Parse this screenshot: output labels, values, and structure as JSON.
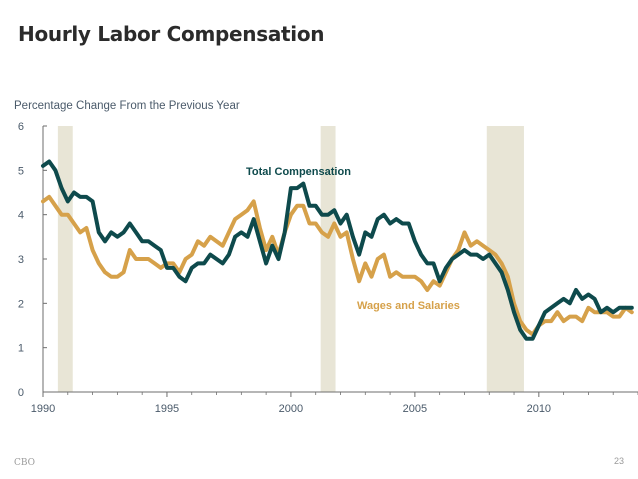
{
  "slide": {
    "title": "Hourly Labor Compensation",
    "footer_source": "CBO",
    "page_number": "23"
  },
  "colors": {
    "total": "#0e4a4c",
    "wages": "#d6a14a",
    "recession": "#e8e5d6",
    "axis": "#6e6e6e",
    "text": "#4a5a6a"
  },
  "chart_data": {
    "type": "line",
    "ylabel": "Percentage Change From the Previous Year",
    "xlim": [
      1990,
      2014
    ],
    "ylim": [
      0,
      6
    ],
    "x_ticks": [
      1990,
      1995,
      2000,
      2005,
      2010
    ],
    "y_ticks": [
      0,
      1,
      2,
      3,
      4,
      5,
      6
    ],
    "shaded_periods": [
      [
        1990.6,
        1991.2
      ],
      [
        2001.2,
        2001.8
      ],
      [
        2007.9,
        2009.4
      ]
    ],
    "series": [
      {
        "name": "Total Compensation",
        "color": "#0e4a4c",
        "points": [
          [
            1990.0,
            5.1
          ],
          [
            1990.25,
            5.2
          ],
          [
            1990.5,
            5.0
          ],
          [
            1990.75,
            4.6
          ],
          [
            1991.0,
            4.3
          ],
          [
            1991.25,
            4.5
          ],
          [
            1991.5,
            4.4
          ],
          [
            1991.75,
            4.4
          ],
          [
            1992.0,
            4.3
          ],
          [
            1992.25,
            3.6
          ],
          [
            1992.5,
            3.4
          ],
          [
            1992.75,
            3.6
          ],
          [
            1993.0,
            3.5
          ],
          [
            1993.25,
            3.6
          ],
          [
            1993.5,
            3.8
          ],
          [
            1993.75,
            3.6
          ],
          [
            1994.0,
            3.4
          ],
          [
            1994.25,
            3.4
          ],
          [
            1994.5,
            3.3
          ],
          [
            1994.75,
            3.2
          ],
          [
            1995.0,
            2.8
          ],
          [
            1995.25,
            2.8
          ],
          [
            1995.5,
            2.6
          ],
          [
            1995.75,
            2.5
          ],
          [
            1996.0,
            2.8
          ],
          [
            1996.25,
            2.9
          ],
          [
            1996.5,
            2.9
          ],
          [
            1996.75,
            3.1
          ],
          [
            1997.0,
            3.0
          ],
          [
            1997.25,
            2.9
          ],
          [
            1997.5,
            3.1
          ],
          [
            1997.75,
            3.5
          ],
          [
            1998.0,
            3.6
          ],
          [
            1998.25,
            3.5
          ],
          [
            1998.5,
            3.9
          ],
          [
            1998.75,
            3.4
          ],
          [
            1999.0,
            2.9
          ],
          [
            1999.25,
            3.3
          ],
          [
            1999.5,
            3.0
          ],
          [
            1999.75,
            3.6
          ],
          [
            2000.0,
            4.6
          ],
          [
            2000.25,
            4.6
          ],
          [
            2000.5,
            4.7
          ],
          [
            2000.75,
            4.2
          ],
          [
            2001.0,
            4.2
          ],
          [
            2001.25,
            4.0
          ],
          [
            2001.5,
            4.0
          ],
          [
            2001.75,
            4.1
          ],
          [
            2002.0,
            3.8
          ],
          [
            2002.25,
            4.0
          ],
          [
            2002.5,
            3.5
          ],
          [
            2002.75,
            3.1
          ],
          [
            2003.0,
            3.6
          ],
          [
            2003.25,
            3.5
          ],
          [
            2003.5,
            3.9
          ],
          [
            2003.75,
            4.0
          ],
          [
            2004.0,
            3.8
          ],
          [
            2004.25,
            3.9
          ],
          [
            2004.5,
            3.8
          ],
          [
            2004.75,
            3.8
          ],
          [
            2005.0,
            3.4
          ],
          [
            2005.25,
            3.1
          ],
          [
            2005.5,
            2.9
          ],
          [
            2005.75,
            2.9
          ],
          [
            2006.0,
            2.5
          ],
          [
            2006.25,
            2.8
          ],
          [
            2006.5,
            3.0
          ],
          [
            2006.75,
            3.1
          ],
          [
            2007.0,
            3.2
          ],
          [
            2007.25,
            3.1
          ],
          [
            2007.5,
            3.1
          ],
          [
            2007.75,
            3.0
          ],
          [
            2008.0,
            3.1
          ],
          [
            2008.25,
            2.9
          ],
          [
            2008.5,
            2.7
          ],
          [
            2008.75,
            2.3
          ],
          [
            2009.0,
            1.8
          ],
          [
            2009.25,
            1.4
          ],
          [
            2009.5,
            1.2
          ],
          [
            2009.75,
            1.2
          ],
          [
            2010.0,
            1.5
          ],
          [
            2010.25,
            1.8
          ],
          [
            2010.5,
            1.9
          ],
          [
            2010.75,
            2.0
          ],
          [
            2011.0,
            2.1
          ],
          [
            2011.25,
            2.0
          ],
          [
            2011.5,
            2.3
          ],
          [
            2011.75,
            2.1
          ],
          [
            2012.0,
            2.2
          ],
          [
            2012.25,
            2.1
          ],
          [
            2012.5,
            1.8
          ],
          [
            2012.75,
            1.9
          ],
          [
            2013.0,
            1.8
          ],
          [
            2013.25,
            1.9
          ],
          [
            2013.5,
            1.9
          ],
          [
            2013.75,
            1.9
          ]
        ]
      },
      {
        "name": "Wages and Salaries",
        "color": "#d6a14a",
        "points": [
          [
            1990.0,
            4.3
          ],
          [
            1990.25,
            4.4
          ],
          [
            1990.5,
            4.2
          ],
          [
            1990.75,
            4.0
          ],
          [
            1991.0,
            4.0
          ],
          [
            1991.25,
            3.8
          ],
          [
            1991.5,
            3.6
          ],
          [
            1991.75,
            3.7
          ],
          [
            1992.0,
            3.2
          ],
          [
            1992.25,
            2.9
          ],
          [
            1992.5,
            2.7
          ],
          [
            1992.75,
            2.6
          ],
          [
            1993.0,
            2.6
          ],
          [
            1993.25,
            2.7
          ],
          [
            1993.5,
            3.2
          ],
          [
            1993.75,
            3.0
          ],
          [
            1994.0,
            3.0
          ],
          [
            1994.25,
            3.0
          ],
          [
            1994.5,
            2.9
          ],
          [
            1994.75,
            2.8
          ],
          [
            1995.0,
            2.9
          ],
          [
            1995.25,
            2.9
          ],
          [
            1995.5,
            2.7
          ],
          [
            1995.75,
            3.0
          ],
          [
            1996.0,
            3.1
          ],
          [
            1996.25,
            3.4
          ],
          [
            1996.5,
            3.3
          ],
          [
            1996.75,
            3.5
          ],
          [
            1997.0,
            3.4
          ],
          [
            1997.25,
            3.3
          ],
          [
            1997.5,
            3.6
          ],
          [
            1997.75,
            3.9
          ],
          [
            1998.0,
            4.0
          ],
          [
            1998.25,
            4.1
          ],
          [
            1998.5,
            4.3
          ],
          [
            1998.75,
            3.7
          ],
          [
            1999.0,
            3.2
          ],
          [
            1999.25,
            3.5
          ],
          [
            1999.5,
            3.1
          ],
          [
            1999.75,
            3.6
          ],
          [
            2000.0,
            4.0
          ],
          [
            2000.25,
            4.2
          ],
          [
            2000.5,
            4.2
          ],
          [
            2000.75,
            3.8
          ],
          [
            2001.0,
            3.8
          ],
          [
            2001.25,
            3.6
          ],
          [
            2001.5,
            3.5
          ],
          [
            2001.75,
            3.8
          ],
          [
            2002.0,
            3.5
          ],
          [
            2002.25,
            3.6
          ],
          [
            2002.5,
            3.0
          ],
          [
            2002.75,
            2.5
          ],
          [
            2003.0,
            2.9
          ],
          [
            2003.25,
            2.6
          ],
          [
            2003.5,
            3.0
          ],
          [
            2003.75,
            3.1
          ],
          [
            2004.0,
            2.6
          ],
          [
            2004.25,
            2.7
          ],
          [
            2004.5,
            2.6
          ],
          [
            2004.75,
            2.6
          ],
          [
            2005.0,
            2.6
          ],
          [
            2005.25,
            2.5
          ],
          [
            2005.5,
            2.3
          ],
          [
            2005.75,
            2.5
          ],
          [
            2006.0,
            2.4
          ],
          [
            2006.25,
            2.7
          ],
          [
            2006.5,
            3.0
          ],
          [
            2006.75,
            3.2
          ],
          [
            2007.0,
            3.6
          ],
          [
            2007.25,
            3.3
          ],
          [
            2007.5,
            3.4
          ],
          [
            2007.75,
            3.3
          ],
          [
            2008.0,
            3.2
          ],
          [
            2008.25,
            3.1
          ],
          [
            2008.5,
            2.9
          ],
          [
            2008.75,
            2.6
          ],
          [
            2009.0,
            2.0
          ],
          [
            2009.25,
            1.6
          ],
          [
            2009.5,
            1.4
          ],
          [
            2009.75,
            1.3
          ],
          [
            2010.0,
            1.5
          ],
          [
            2010.25,
            1.6
          ],
          [
            2010.5,
            1.6
          ],
          [
            2010.75,
            1.8
          ],
          [
            2011.0,
            1.6
          ],
          [
            2011.25,
            1.7
          ],
          [
            2011.5,
            1.7
          ],
          [
            2011.75,
            1.6
          ],
          [
            2012.0,
            1.9
          ],
          [
            2012.25,
            1.8
          ],
          [
            2012.5,
            1.8
          ],
          [
            2012.75,
            1.8
          ],
          [
            2013.0,
            1.7
          ],
          [
            2013.25,
            1.7
          ],
          [
            2013.5,
            1.9
          ],
          [
            2013.75,
            1.8
          ]
        ]
      }
    ],
    "annotations": [
      {
        "text": "Total Compensation",
        "series": 0
      },
      {
        "text": "Wages and Salaries",
        "series": 1
      }
    ]
  }
}
